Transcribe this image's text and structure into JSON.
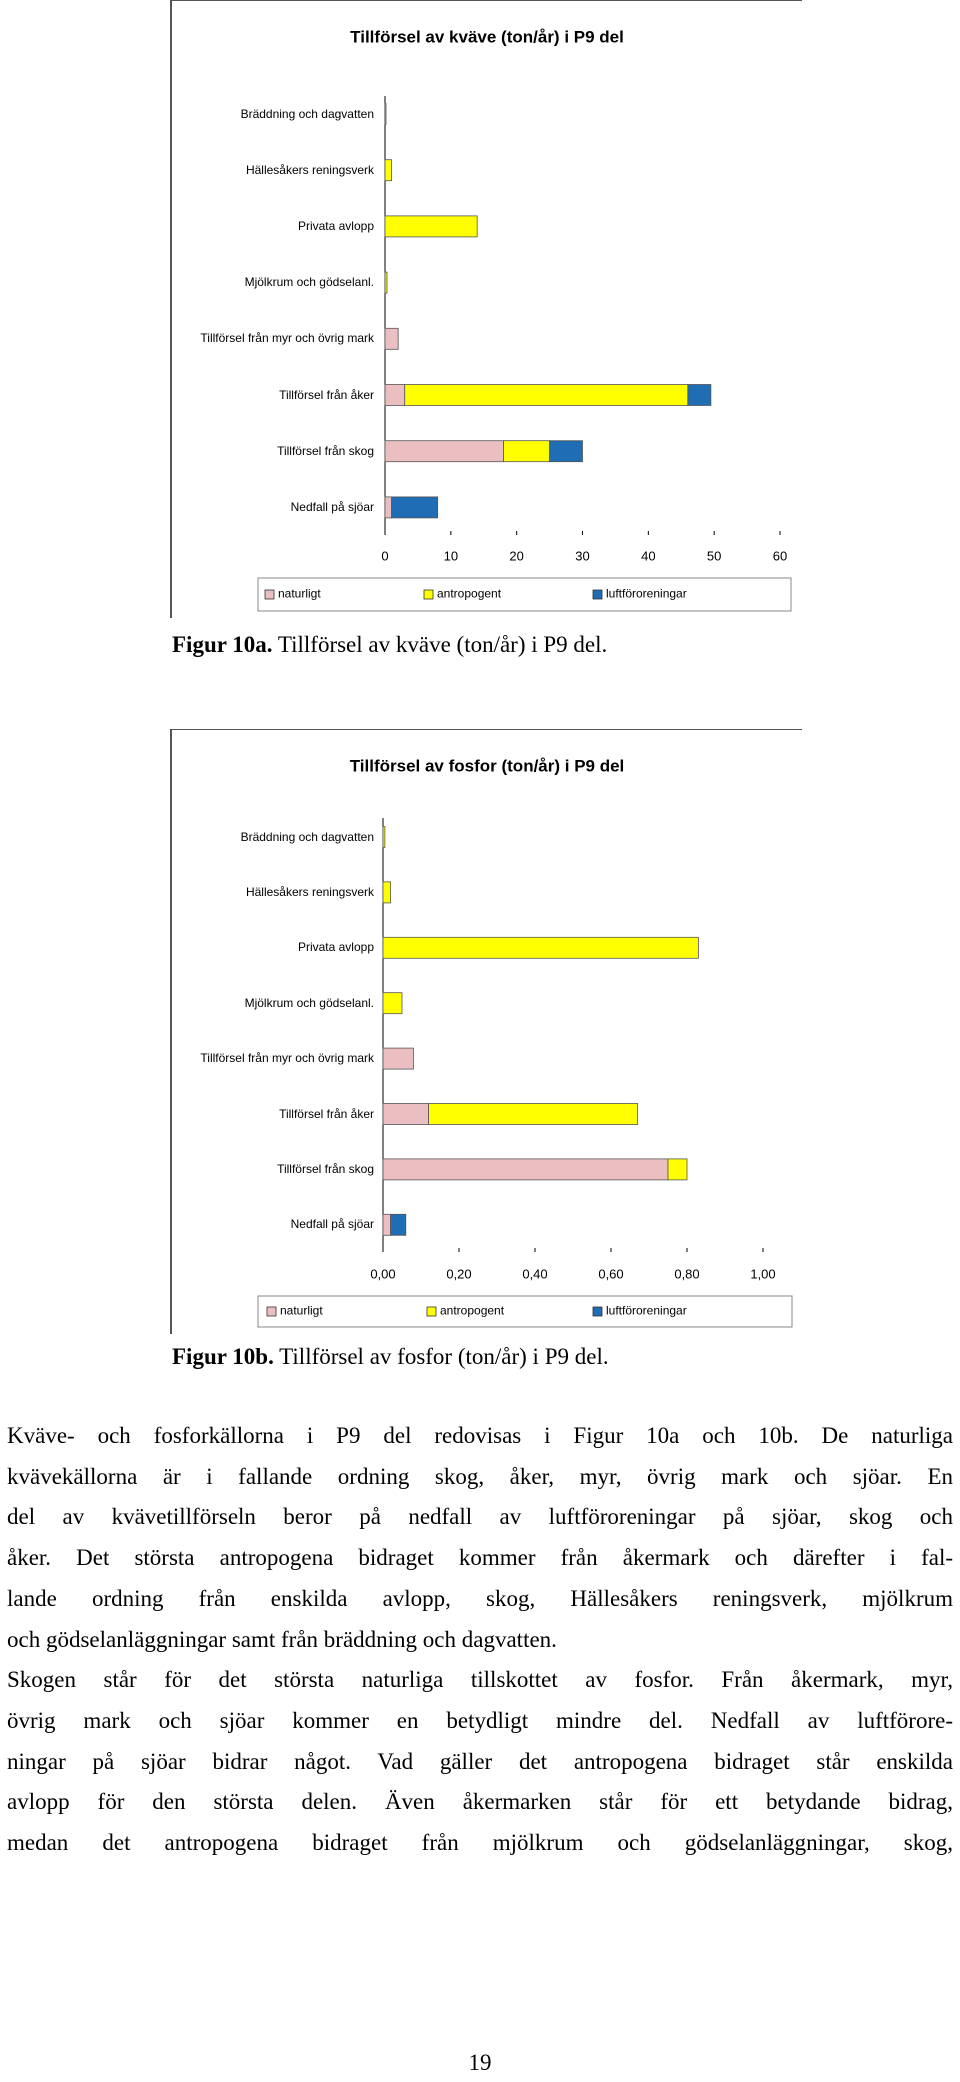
{
  "chart_data": [
    {
      "type": "bar",
      "orientation": "horizontal",
      "stacked": true,
      "title": "Tillförsel av kväve (ton/år) i P9 del",
      "categories": [
        "Bräddning och dagvatten",
        "Hällesåkers reningsverk",
        "Privata avlopp",
        "Mjölkrum och gödselanl.",
        "Tillförsel från myr och övrig mark",
        "Tillförsel från åker",
        "Tillförsel från skog",
        "Nedfall på sjöar"
      ],
      "series": [
        {
          "name": "naturligt",
          "color": "#ebbfc2",
          "values": [
            null,
            null,
            null,
            null,
            2,
            3,
            18,
            1
          ]
        },
        {
          "name": "antropogent",
          "color": "#ffff00",
          "values": [
            0.1,
            1,
            14,
            0.3,
            null,
            43,
            7,
            null
          ]
        },
        {
          "name": "luftföroreningar",
          "color": "#1f6db4",
          "values": [
            null,
            null,
            null,
            null,
            null,
            3.5,
            5,
            7
          ]
        }
      ],
      "xlim": [
        0,
        60
      ],
      "xticks": [
        0,
        10,
        20,
        30,
        40,
        50,
        60
      ],
      "grid": false,
      "legend": "bottom"
    },
    {
      "type": "bar",
      "orientation": "horizontal",
      "stacked": true,
      "title": "Tillförsel av fosfor (ton/år) i P9 del",
      "categories": [
        "Bräddning och dagvatten",
        "Hällesåkers reningsverk",
        "Privata avlopp",
        "Mjölkrum och gödselanl.",
        "Tillförsel från myr och övrig mark",
        "Tillförsel från åker",
        "Tillförsel från skog",
        "Nedfall på sjöar"
      ],
      "series": [
        {
          "name": "naturligt",
          "color": "#ebbfc2",
          "values": [
            null,
            null,
            null,
            null,
            0.08,
            0.12,
            0.75,
            0.02
          ]
        },
        {
          "name": "antropogent",
          "color": "#ffff00",
          "values": [
            0.005,
            0.02,
            0.83,
            0.05,
            null,
            0.55,
            0.05,
            null
          ]
        },
        {
          "name": "luftföroreningar",
          "color": "#1f6db4",
          "values": [
            null,
            null,
            null,
            null,
            null,
            null,
            null,
            0.04
          ]
        }
      ],
      "xlim": [
        0,
        1
      ],
      "xticks": [
        {
          "value": 0,
          "label": "0,00"
        },
        {
          "value": 0.2,
          "label": "0,20"
        },
        {
          "value": 0.4,
          "label": "0,40"
        },
        {
          "value": 0.6,
          "label": "0,60"
        },
        {
          "value": 0.8,
          "label": "0,80"
        },
        {
          "value": 1,
          "label": "1,00"
        }
      ],
      "grid": false,
      "legend": "bottom"
    }
  ],
  "captions": [
    {
      "label": "Figur 10a.",
      "text": "Tillförsel av kväve (ton/år) i P9 del."
    },
    {
      "label": "Figur 10b.",
      "text": "Tillförsel av fosfor (ton/år) i P9 del."
    }
  ],
  "paragraphs": [
    [
      "Kväve- och fosforkällorna i P9 del redovisas i Figur 10a och 10b. De naturliga",
      "kvävekällorna är i fallande ordning skog, åker, myr, övrig mark och sjöar. En",
      "del av kvävetillförseln beror på nedfall av luftföroreningar på sjöar, skog och",
      "åker. Det största antropogena bidraget kommer från åkermark och därefter i fal-",
      "lande ordning från enskilda avlopp, skog, Hällesåkers reningsverk, mjölkrum",
      "och gödselanläggningar samt från bräddning och dagvatten."
    ],
    [
      "Skogen står för det största naturliga tillskottet av fosfor. Från åkermark, myr,",
      "övrig mark och sjöar kommer en betydligt mindre del. Nedfall av luftförore-",
      "ningar på sjöar bidrar något. Vad gäller det antropogena bidraget står enskilda",
      "avlopp för den största delen. Även åkermarken står för ett betydande bidrag,",
      "medan det antropogena bidraget från mjölkrum och gödselanläggningar, skog,"
    ]
  ],
  "page_number": "19"
}
